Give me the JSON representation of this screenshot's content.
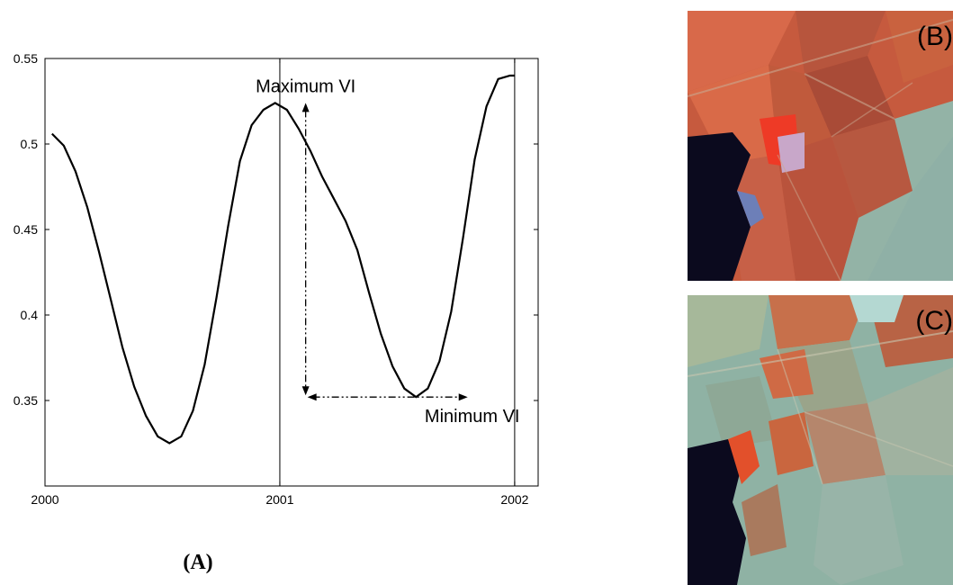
{
  "chart_data": {
    "type": "line",
    "x_ticks": [
      "2000",
      "2001",
      "2002"
    ],
    "y_ticks": [
      "0.35",
      "0.4",
      "0.45",
      "0.5",
      "0.55"
    ],
    "xlim": [
      2000,
      2002.1
    ],
    "ylim": [
      0.3,
      0.55
    ],
    "grid": false,
    "series": [
      {
        "x": [
          2000.03,
          2000.08,
          2000.13,
          2000.18,
          2000.23,
          2000.28,
          2000.33,
          2000.38,
          2000.43,
          2000.48,
          2000.53,
          2000.58,
          2000.63,
          2000.68,
          2000.73,
          2000.78,
          2000.83,
          2000.88,
          2000.93,
          2000.98,
          2001.03,
          2001.08,
          2001.13,
          2001.18,
          2001.23,
          2001.28,
          2001.33,
          2001.38,
          2001.43,
          2001.48,
          2001.53,
          2001.58,
          2001.63,
          2001.68,
          2001.73,
          2001.78,
          2001.83,
          2001.88,
          2001.93,
          2001.98,
          2002.0
        ],
        "y": [
          0.506,
          0.499,
          0.484,
          0.463,
          0.437,
          0.409,
          0.381,
          0.358,
          0.341,
          0.329,
          0.325,
          0.329,
          0.344,
          0.371,
          0.41,
          0.452,
          0.49,
          0.511,
          0.52,
          0.524,
          0.52,
          0.509,
          0.496,
          0.481,
          0.468,
          0.455,
          0.438,
          0.413,
          0.389,
          0.37,
          0.357,
          0.352,
          0.357,
          0.373,
          0.402,
          0.445,
          0.491,
          0.522,
          0.538,
          0.54,
          0.54
        ]
      }
    ],
    "annotations": {
      "max_label": "Maximum VI",
      "min_label": "Minimum VI",
      "max_point": [
        2001.11,
        0.524
      ],
      "min_point": [
        2001.8,
        0.352
      ]
    },
    "vertical_lines": [
      2001,
      2002
    ]
  },
  "captions": {
    "panel_a": "(A)",
    "panel_b": "(B)",
    "panel_c": "(C)"
  },
  "colors": {
    "line": "#000000",
    "water": "#0b0a1e",
    "crop_red": "#c8553a",
    "veg_green": "#8fb2a4"
  }
}
